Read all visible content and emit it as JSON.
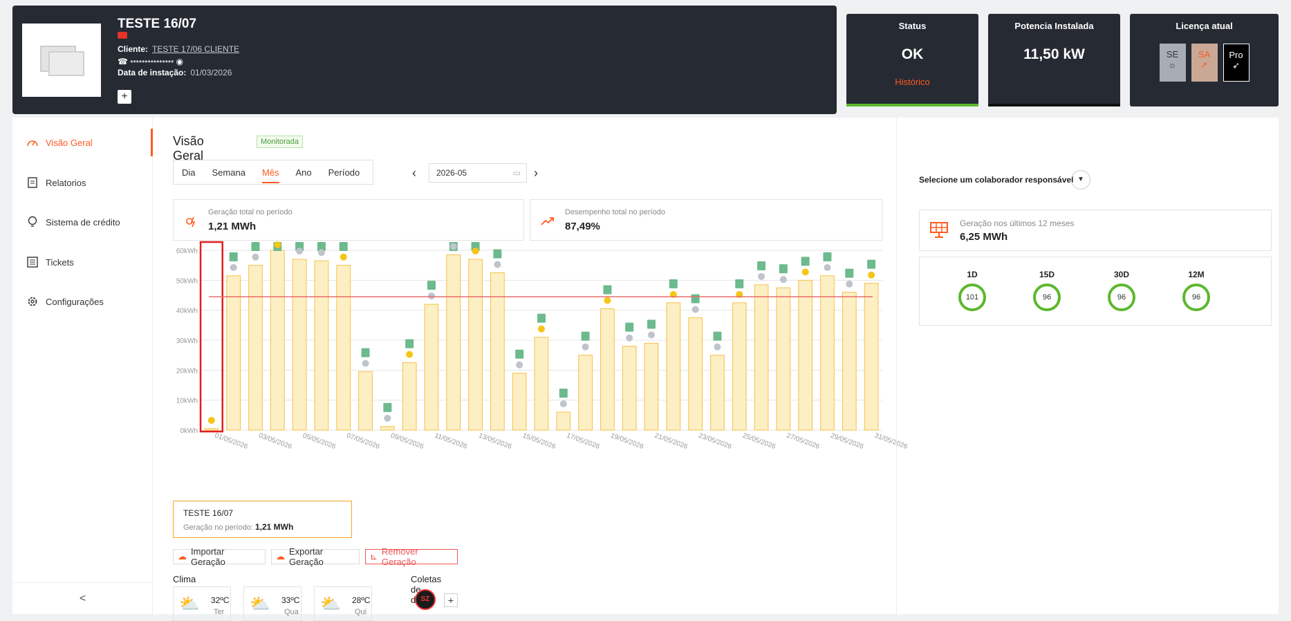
{
  "header": {
    "title": "TESTE 16/07",
    "client_label": "Cliente:",
    "client_value": "TESTE 17/06 CLIENTE",
    "phone_masked": "•••••••••••••••",
    "install_label": "Data de instação:",
    "install_value": "01/03/2026",
    "add_label": "+"
  },
  "cards": {
    "status_title": "Status",
    "status_value": "OK",
    "status_link": "Histórico",
    "power_title": "Potencia Instalada",
    "power_value": "11,50 kW",
    "license_title": "Licença atual",
    "license_items": [
      "SE",
      "SA",
      "Pro"
    ]
  },
  "sidebar": {
    "items": [
      {
        "label": "Visão Geral",
        "icon": "gauge-icon"
      },
      {
        "label": "Relatorios",
        "icon": "document-icon"
      },
      {
        "label": "Sistema de crédito",
        "icon": "lightbulb-icon"
      },
      {
        "label": "Tickets",
        "icon": "list-icon"
      },
      {
        "label": "Configurações",
        "icon": "gear-icon"
      }
    ],
    "collapse": "<"
  },
  "main": {
    "title": "Visão Geral",
    "badge": "Monitorada",
    "tabs": [
      "Dia",
      "Semana",
      "Mês",
      "Ano",
      "Período"
    ],
    "active_tab": "Mês",
    "date_value": "2026-05",
    "stat_total_label": "Geração total no período",
    "stat_total_value": "1,21 MWh",
    "stat_perf_label": "Desempenho total no período",
    "stat_perf_value": "87,49%",
    "system_name": "TESTE 16/07",
    "system_gen_label": "Geração no período:",
    "system_gen_value": "1,21 MWh",
    "btn_import": "Importar Geração",
    "btn_export": "Exportar Geração",
    "btn_remove": "Remover Geração",
    "climate_label": "Clima",
    "collect_label": "Coletas de dados",
    "collector_abbr": "SZ",
    "weather": [
      {
        "temp": "32ºC",
        "day": "Ter"
      },
      {
        "temp": "33ºC",
        "day": "Qua"
      },
      {
        "temp": "28ºC",
        "day": "Qui"
      }
    ]
  },
  "right": {
    "select_label": "Selecione um colaborador responsável",
    "gen12_label": "Geração nos últimos 12 meses",
    "gen12_value": "6,25 MWh",
    "perf": [
      {
        "label": "1D",
        "value": "101"
      },
      {
        "label": "15D",
        "value": "96"
      },
      {
        "label": "30D",
        "value": "96"
      },
      {
        "label": "12M",
        "value": "96"
      }
    ]
  },
  "chart_data": {
    "type": "bar",
    "y_ticks": [
      "0kWh",
      "10kWh",
      "20kWh",
      "30kWh",
      "40kWh",
      "50kWh",
      "60kWh"
    ],
    "ylim": [
      0,
      60
    ],
    "x_labels": [
      "01/05/2026",
      "03/05/2026",
      "05/05/2026",
      "07/05/2026",
      "09/05/2026",
      "11/05/2026",
      "13/05/2026",
      "15/05/2026",
      "17/05/2026",
      "19/05/2026",
      "21/05/2026",
      "23/05/2026",
      "25/05/2026",
      "27/05/2026",
      "29/05/2026",
      "31/05/2026"
    ],
    "values": [
      0.5,
      51.5,
      55,
      60,
      57,
      56.5,
      55,
      19.5,
      1.2,
      22.5,
      42,
      58.5,
      57,
      52.5,
      19,
      31,
      6,
      25,
      40.5,
      28,
      29,
      42.5,
      37.5,
      25,
      42.5,
      48.5,
      47.5,
      50,
      51.5,
      46,
      49
    ],
    "reference_line": 44.5,
    "colors": {
      "bar_fill": "#fdefc4",
      "bar_stroke": "#f5c04a",
      "reference": "#e86a6a",
      "highlight": "#e01e1e",
      "grid": "#e5e5e5"
    }
  }
}
